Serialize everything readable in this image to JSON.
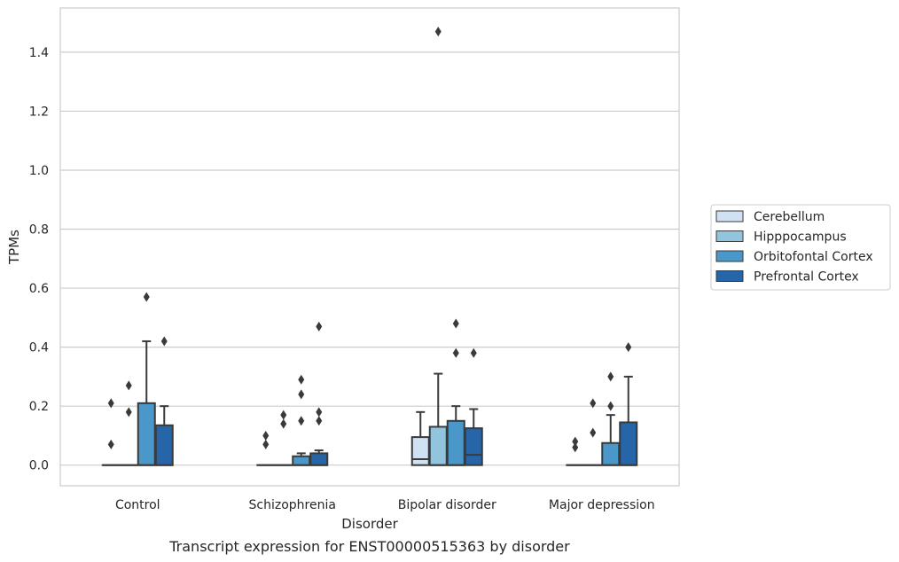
{
  "chart_data": {
    "type": "box",
    "title": "",
    "caption": "Transcript expression for ENST00000515363 by disorder",
    "xlabel": "Disorder",
    "ylabel": "TPMs",
    "ylim": [
      -0.07,
      1.55
    ],
    "yticks": [
      0.0,
      0.2,
      0.4,
      0.6,
      0.8,
      1.0,
      1.2,
      1.4
    ],
    "ytick_labels": [
      "0.0",
      "0.2",
      "0.4",
      "0.6",
      "0.8",
      "1.0",
      "1.2",
      "1.4"
    ],
    "grid": "horizontal",
    "legend_placement": "right",
    "categories": [
      "Control",
      "Schizophrenia",
      "Bipolar disorder",
      "Major depression"
    ],
    "series": [
      {
        "name": "Cerebellum",
        "color": "#cfe1f2",
        "boxes": [
          {
            "q1": 0.0,
            "median": 0.0,
            "q3": 0.0,
            "whisker_low": 0.0,
            "whisker_high": 0.0,
            "outliers": [
              0.07,
              0.21
            ]
          },
          {
            "q1": 0.0,
            "median": 0.0,
            "q3": 0.0,
            "whisker_low": 0.0,
            "whisker_high": 0.0,
            "outliers": [
              0.07,
              0.1
            ]
          },
          {
            "q1": 0.0,
            "median": 0.02,
            "q3": 0.095,
            "whisker_low": 0.0,
            "whisker_high": 0.18,
            "outliers": []
          },
          {
            "q1": 0.0,
            "median": 0.0,
            "q3": 0.0,
            "whisker_low": 0.0,
            "whisker_high": 0.0,
            "outliers": [
              0.06,
              0.08
            ]
          }
        ]
      },
      {
        "name": "Hipppocampus",
        "color": "#93c4de",
        "boxes": [
          {
            "q1": 0.0,
            "median": 0.0,
            "q3": 0.0,
            "whisker_low": 0.0,
            "whisker_high": 0.0,
            "outliers": [
              0.18,
              0.27
            ]
          },
          {
            "q1": 0.0,
            "median": 0.0,
            "q3": 0.0,
            "whisker_low": 0.0,
            "whisker_high": 0.0,
            "outliers": [
              0.14,
              0.17
            ]
          },
          {
            "q1": 0.0,
            "median": 0.0,
            "q3": 0.13,
            "whisker_low": 0.0,
            "whisker_high": 0.31,
            "outliers": [
              1.47
            ]
          },
          {
            "q1": 0.0,
            "median": 0.0,
            "q3": 0.0,
            "whisker_low": 0.0,
            "whisker_high": 0.0,
            "outliers": [
              0.11,
              0.21
            ]
          }
        ]
      },
      {
        "name": "Orbitofontal Cortex",
        "color": "#4a98c9",
        "boxes": [
          {
            "q1": 0.0,
            "median": 0.0,
            "q3": 0.21,
            "whisker_low": 0.0,
            "whisker_high": 0.42,
            "outliers": [
              0.57
            ]
          },
          {
            "q1": 0.0,
            "median": 0.0,
            "q3": 0.03,
            "whisker_low": 0.0,
            "whisker_high": 0.04,
            "outliers": [
              0.15,
              0.24,
              0.29
            ]
          },
          {
            "q1": 0.0,
            "median": 0.0,
            "q3": 0.15,
            "whisker_low": 0.0,
            "whisker_high": 0.2,
            "outliers": [
              0.38,
              0.48
            ]
          },
          {
            "q1": 0.0,
            "median": 0.0,
            "q3": 0.075,
            "whisker_low": 0.0,
            "whisker_high": 0.17,
            "outliers": [
              0.2,
              0.3
            ]
          }
        ]
      },
      {
        "name": "Prefrontal Cortex",
        "color": "#2565a8",
        "boxes": [
          {
            "q1": 0.0,
            "median": 0.0,
            "q3": 0.135,
            "whisker_low": 0.0,
            "whisker_high": 0.2,
            "outliers": [
              0.42
            ]
          },
          {
            "q1": 0.0,
            "median": 0.0,
            "q3": 0.04,
            "whisker_low": 0.0,
            "whisker_high": 0.05,
            "outliers": [
              0.15,
              0.18,
              0.47
            ]
          },
          {
            "q1": 0.0,
            "median": 0.035,
            "q3": 0.125,
            "whisker_low": 0.0,
            "whisker_high": 0.19,
            "outliers": [
              0.38
            ]
          },
          {
            "q1": 0.0,
            "median": 0.0,
            "q3": 0.145,
            "whisker_low": 0.0,
            "whisker_high": 0.3,
            "outliers": [
              0.4
            ]
          }
        ]
      }
    ]
  }
}
